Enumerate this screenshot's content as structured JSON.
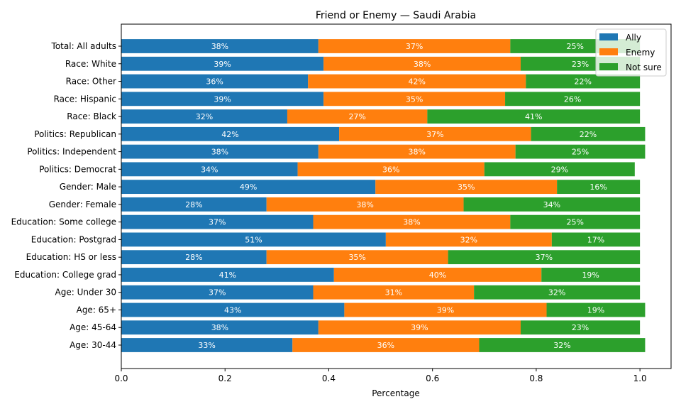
{
  "chart_data": {
    "type": "bar",
    "orientation": "horizontal",
    "stacked": true,
    "title": "Friend or Enemy — Saudi Arabia",
    "xlabel": "Percentage",
    "ylabel": "",
    "xlim": [
      0,
      1.06
    ],
    "xticks": [
      "0.0",
      "0.2",
      "0.4",
      "0.6",
      "0.8",
      "1.0"
    ],
    "grid": false,
    "legend_position": "top-right",
    "categories": [
      "Total: All adults",
      "Race: White",
      "Race: Other",
      "Race: Hispanic",
      "Race: Black",
      "Politics: Republican",
      "Politics: Independent",
      "Politics: Democrat",
      "Gender: Male",
      "Gender: Female",
      "Education: Some college",
      "Education: Postgrad",
      "Education: HS or less",
      "Education: College grad",
      "Age: Under 30",
      "Age: 65+",
      "Age: 45-64",
      "Age: 30-44"
    ],
    "series": [
      {
        "name": "Ally",
        "color": "#1f77b4",
        "values": [
          0.38,
          0.39,
          0.36,
          0.39,
          0.32,
          0.42,
          0.38,
          0.34,
          0.49,
          0.28,
          0.37,
          0.51,
          0.28,
          0.41,
          0.37,
          0.43,
          0.38,
          0.33
        ]
      },
      {
        "name": "Enemy",
        "color": "#ff7f0e",
        "values": [
          0.37,
          0.38,
          0.42,
          0.35,
          0.27,
          0.37,
          0.38,
          0.36,
          0.35,
          0.38,
          0.38,
          0.32,
          0.35,
          0.4,
          0.31,
          0.39,
          0.39,
          0.36
        ]
      },
      {
        "name": "Not sure",
        "color": "#2ca02c",
        "values": [
          0.25,
          0.23,
          0.22,
          0.26,
          0.41,
          0.22,
          0.25,
          0.29,
          0.16,
          0.34,
          0.25,
          0.17,
          0.37,
          0.19,
          0.32,
          0.19,
          0.23,
          0.32
        ]
      }
    ]
  }
}
